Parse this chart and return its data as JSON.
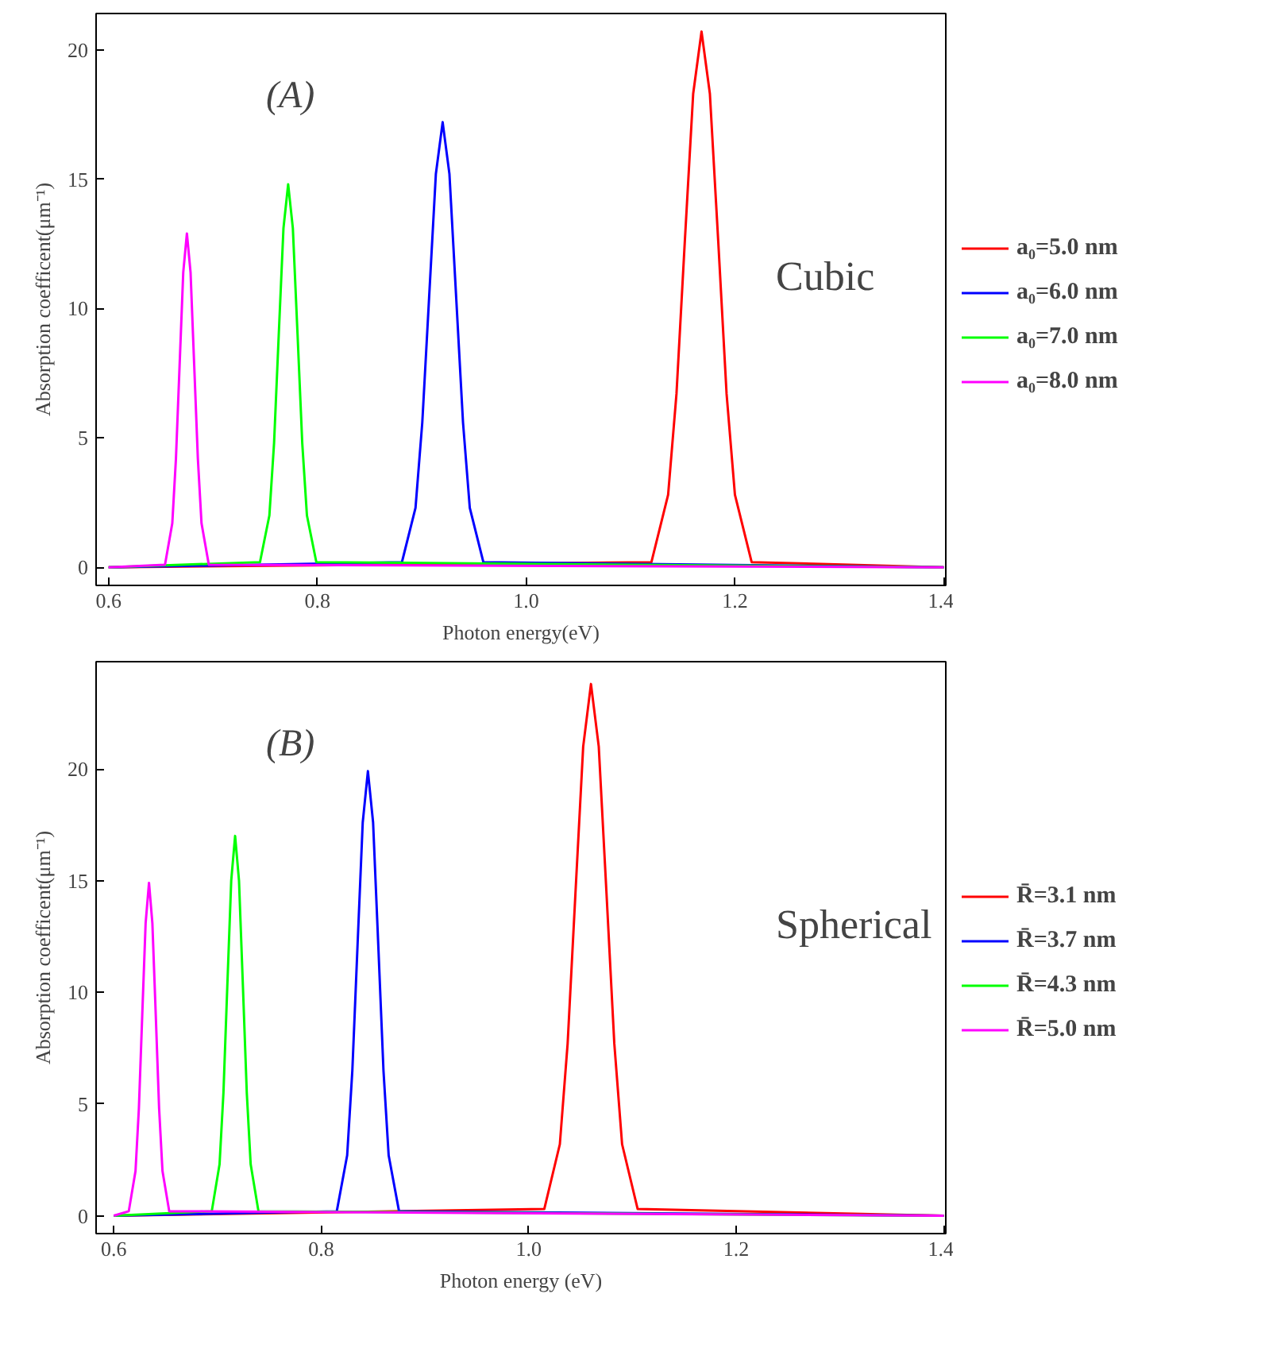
{
  "chart_data": [
    {
      "type": "line",
      "xlabel": "Photon energy(eV)",
      "ylabel": "Absorption coefficent(μm⁻¹)",
      "xlim": [
        0.588,
        1.402
      ],
      "ylim": [
        -0.7,
        21.4
      ],
      "xticks": [
        0.6,
        0.8,
        {
          "value": 1.0,
          "label": "1.0"
        },
        1.2,
        1.4
      ],
      "yticks": [
        0,
        5,
        10,
        15,
        20
      ],
      "grid": false,
      "legend": "right",
      "annotations": [
        "(A)",
        "Cubic"
      ],
      "series": [
        {
          "name": "a₀=5.0 nm",
          "color": "#ff0000",
          "x": [
            0.6,
            1.12,
            1.136,
            1.144,
            1.152,
            1.16,
            1.168,
            1.176,
            1.184,
            1.192,
            1.2,
            1.216,
            1.4
          ],
          "values": [
            0,
            0.2,
            2.8,
            6.7,
            12.6,
            18.3,
            20.7,
            18.3,
            12.6,
            6.7,
            2.8,
            0.2,
            0
          ]
        },
        {
          "name": "a₀=6.0 nm",
          "color": "#0000ff",
          "x": [
            0.6,
            0.881,
            0.894,
            0.9005,
            0.907,
            0.9135,
            0.92,
            0.9265,
            0.933,
            0.9395,
            0.946,
            0.959,
            1.4
          ],
          "values": [
            0,
            0.2,
            2.3,
            5.6,
            10.4,
            15.2,
            17.2,
            15.2,
            10.4,
            5.6,
            2.3,
            0.2,
            0
          ]
        },
        {
          "name": "a₀=7.0 nm",
          "color": "#00ff00",
          "x": [
            0.6,
            0.745,
            0.754,
            0.7585,
            0.763,
            0.7675,
            0.772,
            0.7765,
            0.781,
            0.7855,
            0.79,
            0.799,
            1.4
          ],
          "values": [
            0,
            0.2,
            2.0,
            4.8,
            9.0,
            13.1,
            14.8,
            13.1,
            9.0,
            4.8,
            2.0,
            0.2,
            0
          ]
        },
        {
          "name": "a₀=8.0 nm",
          "color": "#ff00ff",
          "x": [
            0.6,
            0.654,
            0.661,
            0.6645,
            0.668,
            0.6715,
            0.675,
            0.6785,
            0.682,
            0.6855,
            0.689,
            0.696,
            1.4
          ],
          "values": [
            0,
            0.1,
            1.7,
            4.2,
            7.8,
            11.4,
            12.9,
            11.4,
            7.8,
            4.2,
            1.7,
            0.1,
            0
          ]
        }
      ]
    },
    {
      "type": "line",
      "xlabel": "Photon energy (eV)",
      "ylabel": "Absorption coefficent(μm⁻¹)",
      "xlim": [
        0.583,
        1.402
      ],
      "ylim": [
        -0.8,
        24.8
      ],
      "xticks": [
        0.6,
        0.8,
        {
          "value": 1.0,
          "label": "1.0"
        },
        1.2,
        1.4
      ],
      "yticks": [
        0,
        5,
        10,
        15,
        20
      ],
      "grid": false,
      "legend": "right",
      "annotations": [
        "(B)",
        "Spherical"
      ],
      "series": [
        {
          "name": "R̄=3.1 nm",
          "color": "#ff0000",
          "x": [
            0.6,
            1.015,
            1.03,
            1.0375,
            1.045,
            1.0525,
            1.06,
            1.0675,
            1.075,
            1.0825,
            1.09,
            1.105,
            1.4
          ],
          "values": [
            0,
            0.3,
            3.2,
            7.7,
            14.4,
            21.0,
            23.8,
            21.0,
            14.4,
            7.7,
            3.2,
            0.3,
            0
          ]
        },
        {
          "name": "R̄=3.7 nm",
          "color": "#0000ff",
          "x": [
            0.6,
            0.815,
            0.825,
            0.83,
            0.835,
            0.84,
            0.845,
            0.85,
            0.855,
            0.86,
            0.865,
            0.875,
            1.4
          ],
          "values": [
            0,
            0.2,
            2.7,
            6.5,
            12.1,
            17.6,
            19.9,
            17.6,
            12.1,
            6.5,
            2.7,
            0.2,
            0
          ]
        },
        {
          "name": "R̄=4.3 nm",
          "color": "#00ff00",
          "x": [
            0.6,
            0.6945,
            0.702,
            0.70575,
            0.7095,
            0.71325,
            0.717,
            0.72075,
            0.7245,
            0.72825,
            0.732,
            0.7395,
            1.4
          ],
          "values": [
            0,
            0.2,
            2.3,
            5.5,
            10.3,
            15.0,
            17.0,
            15.0,
            10.3,
            5.5,
            2.3,
            0.2,
            0
          ]
        },
        {
          "name": "R̄=5.0 nm",
          "color": "#ff00ff",
          "x": [
            0.6,
            0.6145,
            0.621,
            0.62425,
            0.6275,
            0.63075,
            0.634,
            0.63725,
            0.6405,
            0.64375,
            0.647,
            0.6535,
            1.4
          ],
          "values": [
            0,
            0.2,
            2.0,
            4.8,
            9.0,
            13.1,
            14.9,
            13.1,
            9.0,
            4.8,
            2.0,
            0.2,
            0
          ]
        }
      ]
    }
  ]
}
